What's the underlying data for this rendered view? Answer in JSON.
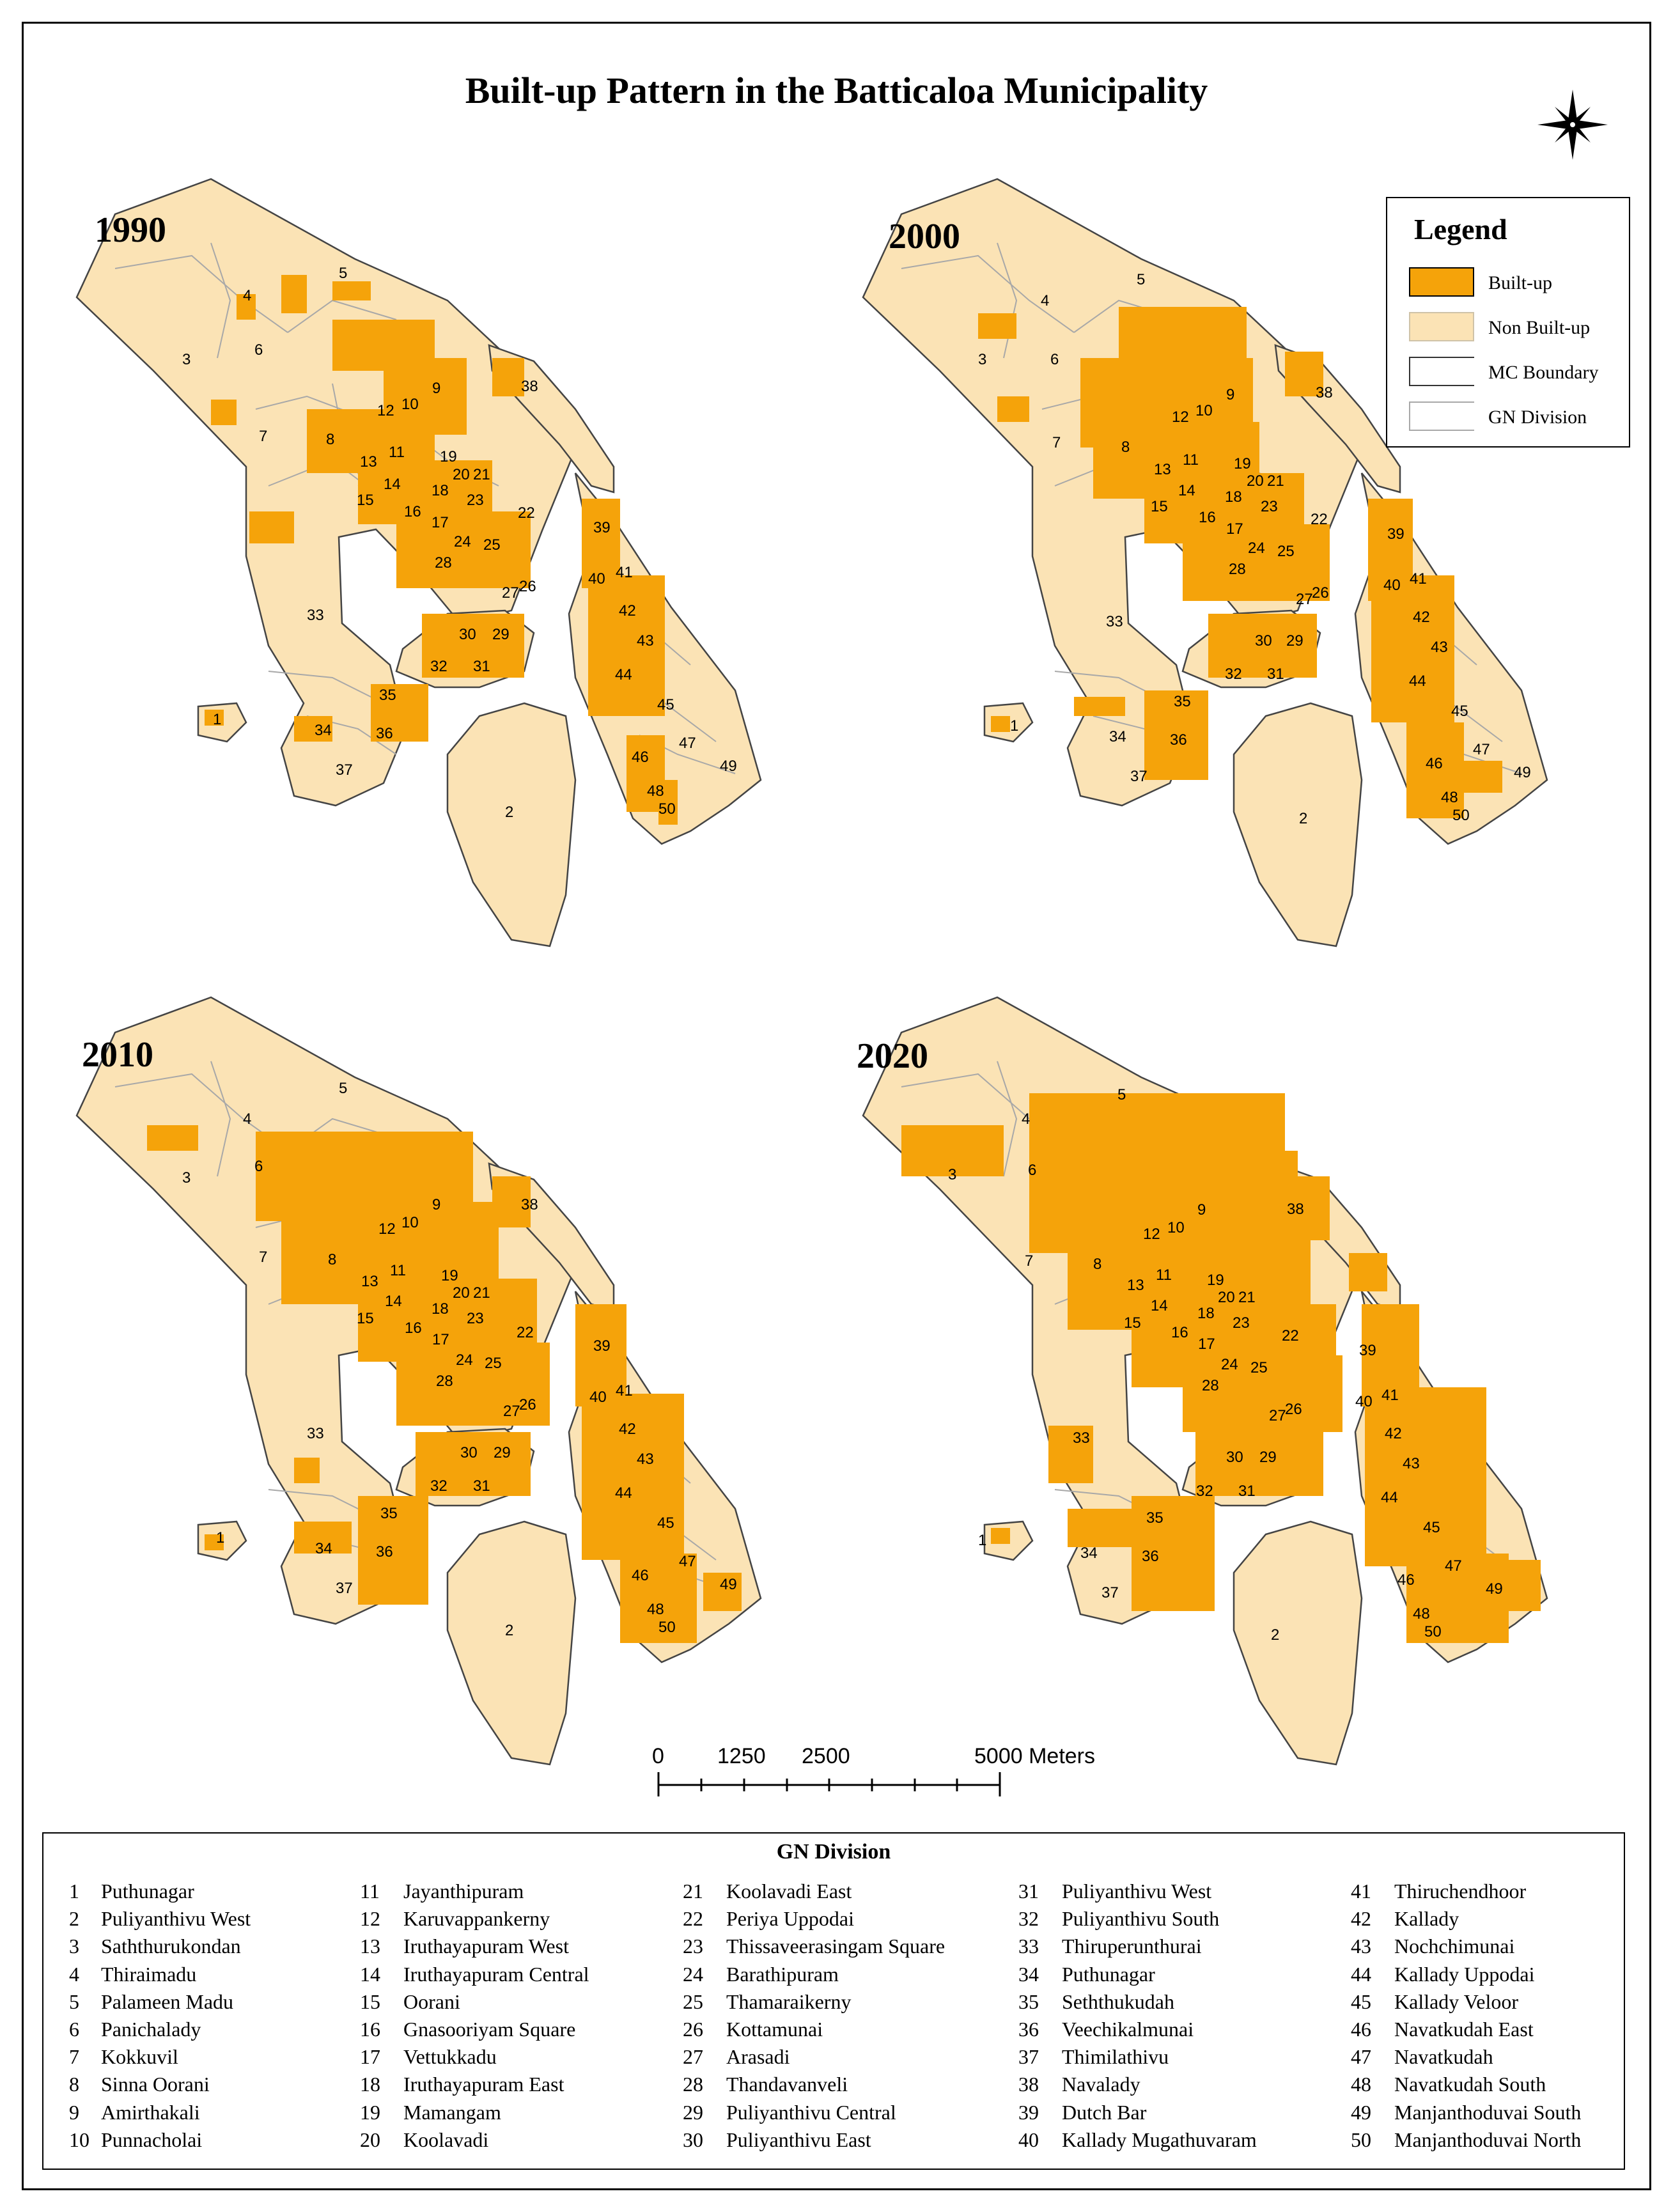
{
  "title": "Built-up Pattern in the Batticaloa Municipality",
  "years": [
    "1990",
    "2000",
    "2010",
    "2020"
  ],
  "legend": {
    "title": "Legend",
    "items": [
      {
        "label": "Built-up",
        "color": "#f5a30a"
      },
      {
        "label": "Non Built-up",
        "color": "#fbe3b5"
      },
      {
        "label": "MC Boundary",
        "color": "#333333"
      },
      {
        "label": "GN Division",
        "color": "#a8a8a8"
      }
    ]
  },
  "scale_bar": {
    "labels": [
      "0",
      "1250",
      "2500",
      "5000 Meters"
    ]
  },
  "gn_division": {
    "title": "GN Division",
    "items": [
      {
        "num": "1",
        "name": "Puthunagar"
      },
      {
        "num": "2",
        "name": "Puliyanthivu West"
      },
      {
        "num": "3",
        "name": "Saththurukondan"
      },
      {
        "num": "4",
        "name": "Thiraimadu"
      },
      {
        "num": "5",
        "name": "Palameen Madu"
      },
      {
        "num": "6",
        "name": "Panichalady"
      },
      {
        "num": "7",
        "name": "Kokkuvil"
      },
      {
        "num": "8",
        "name": "Sinna Oorani"
      },
      {
        "num": "9",
        "name": "Amirthakali"
      },
      {
        "num": "10",
        "name": "Punnacholai"
      },
      {
        "num": "11",
        "name": "Jayanthipuram"
      },
      {
        "num": "12",
        "name": "Karuvappankerny"
      },
      {
        "num": "13",
        "name": "Iruthayapuram West"
      },
      {
        "num": "14",
        "name": "Iruthayapuram Central"
      },
      {
        "num": "15",
        "name": "Oorani"
      },
      {
        "num": "16",
        "name": "Gnasooriyam Square"
      },
      {
        "num": "17",
        "name": "Vettukkadu"
      },
      {
        "num": "18",
        "name": "Iruthayapuram East"
      },
      {
        "num": "19",
        "name": "Mamangam"
      },
      {
        "num": "20",
        "name": "Koolavadi"
      },
      {
        "num": "21",
        "name": "Koolavadi East"
      },
      {
        "num": "22",
        "name": "Periya Uppodai"
      },
      {
        "num": "23",
        "name": "Thissaveerasingam Square"
      },
      {
        "num": "24",
        "name": "Barathipuram"
      },
      {
        "num": "25",
        "name": "Thamaraikerny"
      },
      {
        "num": "26",
        "name": "Kottamunai"
      },
      {
        "num": "27",
        "name": "Arasadi"
      },
      {
        "num": "28",
        "name": "Thandavanveli"
      },
      {
        "num": "29",
        "name": "Puliyanthivu Central"
      },
      {
        "num": "30",
        "name": "Puliyanthivu East"
      },
      {
        "num": "31",
        "name": "Puliyanthivu West"
      },
      {
        "num": "32",
        "name": "Puliyanthivu South"
      },
      {
        "num": "33",
        "name": "Thiruperunthurai"
      },
      {
        "num": "34",
        "name": "Puthunagar"
      },
      {
        "num": "35",
        "name": "Seththukudah"
      },
      {
        "num": "36",
        "name": "Veechikalmunai"
      },
      {
        "num": "37",
        "name": "Thimilathivu"
      },
      {
        "num": "38",
        "name": "Navalady"
      },
      {
        "num": "39",
        "name": "Dutch Bar"
      },
      {
        "num": "40",
        "name": "Kallady Mugathuvaram"
      },
      {
        "num": "41",
        "name": "Thiruchendhoor"
      },
      {
        "num": "42",
        "name": "Kallady"
      },
      {
        "num": "43",
        "name": "Nochchimunai"
      },
      {
        "num": "44",
        "name": "Kallady Uppodai"
      },
      {
        "num": "45",
        "name": "Kallady Veloor"
      },
      {
        "num": "46",
        "name": "Navatkudah East"
      },
      {
        "num": "47",
        "name": "Navatkudah"
      },
      {
        "num": "48",
        "name": "Navatkudah South"
      },
      {
        "num": "49",
        "name": "Manjanthoduvai South"
      },
      {
        "num": "50",
        "name": "Manjanthoduvai North"
      }
    ]
  },
  "built_up_level": {
    "1990": 0.2,
    "2000": 0.35,
    "2010": 0.5,
    "2020": 0.7
  }
}
